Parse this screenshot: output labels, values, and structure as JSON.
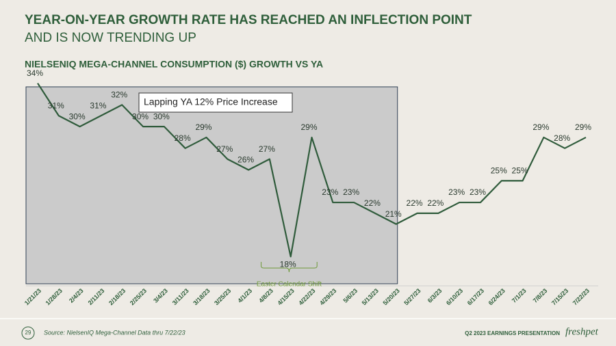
{
  "header": {
    "title": "YEAR-ON-YEAR GROWTH RATE HAS REACHED AN INFLECTION POINT",
    "subtitle": "AND IS NOW TRENDING UP"
  },
  "chart_data": {
    "type": "line",
    "title": "NIELSENIQ MEGA-CHANNEL CONSUMPTION ($) GROWTH VS YA",
    "categories": [
      "1/21/23",
      "1/28/23",
      "2/4/23",
      "2/11/23",
      "2/18/23",
      "2/25/23",
      "3/4/23",
      "3/11/23",
      "3/18/23",
      "3/25/23",
      "4/1/23",
      "4/8/23",
      "4/15/23",
      "4/22/23",
      "4/29/23",
      "5/6/23",
      "5/13/23",
      "5/20/23",
      "5/27/23",
      "6/3/23",
      "6/10/23",
      "6/17/23",
      "6/24/23",
      "7/1/23",
      "7/8/23",
      "7/15/23",
      "7/22/23"
    ],
    "values": [
      34,
      31,
      30,
      31,
      32,
      30,
      30,
      28,
      29,
      27,
      26,
      27,
      18,
      29,
      23,
      23,
      22,
      21,
      22,
      22,
      23,
      23,
      25,
      25,
      29,
      28,
      29
    ],
    "value_labels": [
      "34%",
      "31%",
      "30%",
      "31%",
      "32%",
      "30%",
      "30%",
      "28%",
      "29%",
      "27%",
      "26%",
      "27%",
      "18%",
      "29%",
      "23%",
      "23%",
      "22%",
      "21%",
      "22%",
      "22%",
      "23%",
      "23%",
      "25%",
      "25%",
      "29%",
      "28%",
      "29%"
    ],
    "color": "#2f5b3b",
    "ylim": [
      16,
      36
    ],
    "annotations": [
      "Lapping YA 12% Price Increase",
      "Easter Calendar Shift"
    ]
  },
  "footer": {
    "page": "29",
    "source": "Source:  NielsenIQ Mega-Channel Data thru 7/22/23",
    "presentation": "Q2 2023 EARNINGS PRESENTATION",
    "logo": "freshpet"
  }
}
